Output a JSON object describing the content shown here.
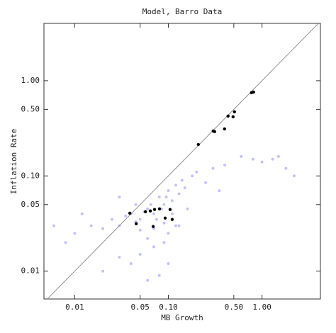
{
  "chart_data": {
    "type": "scatter",
    "title": "Model, Barro Data",
    "x_label": "MB Growth",
    "y_label": "Inflation Rate",
    "xscale": "log",
    "yscale": "log",
    "identity_line": true,
    "xlim": [
      0.0047,
      4.2
    ],
    "ylim": [
      0.0051,
      4.0
    ],
    "xticks": [
      0.01,
      0.05,
      {
        "value": 0.1,
        "label": "0.10"
      },
      {
        "value": 0.5,
        "label": "0.50"
      },
      {
        "value": 1,
        "label": "1.00"
      }
    ],
    "yticks": [
      0.01,
      0.05,
      {
        "value": 0.1,
        "label": "0.10"
      },
      {
        "value": 0.5,
        "label": "0.50"
      },
      {
        "value": 1,
        "label": "1.00"
      }
    ],
    "series": [
      {
        "color": "#7b7bf5",
        "opacity": 0.45,
        "x": [
          0.08,
          0.1,
          0.12,
          0.06,
          0.09,
          0.07,
          0.11,
          0.13,
          0.15,
          0.05,
          0.04,
          0.03,
          0.02,
          0.015,
          0.01,
          0.008,
          0.025,
          0.035,
          0.045,
          0.055,
          0.065,
          0.075,
          0.085,
          0.095,
          0.14,
          0.18,
          0.2,
          0.25,
          0.3,
          0.12,
          0.1,
          0.09,
          0.07,
          0.06,
          0.05,
          0.04,
          0.03,
          0.02,
          0.06,
          0.08,
          0.1,
          0.05,
          0.07,
          0.03,
          0.012,
          0.006,
          0.6,
          0.8,
          1.0,
          1.3,
          1.8,
          2.2,
          0.4,
          0.35,
          1.5,
          0.16,
          0.11,
          0.045,
          0.09,
          0.13
        ],
        "values": [
          0.06,
          0.07,
          0.08,
          0.045,
          0.05,
          0.04,
          0.055,
          0.065,
          0.075,
          0.035,
          0.04,
          0.03,
          0.028,
          0.03,
          0.025,
          0.02,
          0.035,
          0.038,
          0.033,
          0.042,
          0.05,
          0.035,
          0.045,
          0.06,
          0.09,
          0.1,
          0.11,
          0.085,
          0.12,
          0.03,
          0.025,
          0.02,
          0.018,
          0.022,
          0.015,
          0.012,
          0.014,
          0.01,
          0.008,
          0.009,
          0.012,
          0.027,
          0.028,
          0.06,
          0.04,
          0.03,
          0.16,
          0.15,
          0.14,
          0.15,
          0.12,
          0.1,
          0.13,
          0.07,
          0.16,
          0.045,
          0.04,
          0.05,
          0.032,
          0.03
        ]
      },
      {
        "color": "#000000",
        "opacity": 1,
        "x": [
          0.0388,
          0.0454,
          0.0569,
          0.0642,
          0.0713,
          0.0805,
          0.0689,
          0.0925,
          0.1044,
          0.11,
          0.209,
          0.301,
          0.312,
          0.398,
          0.434,
          0.491,
          0.508,
          0.771,
          0.812
        ],
        "values": [
          0.0407,
          0.0315,
          0.0421,
          0.0429,
          0.0444,
          0.0451,
          0.0294,
          0.0361,
          0.0444,
          0.0349,
          0.214,
          0.296,
          0.292,
          0.312,
          0.425,
          0.418,
          0.471,
          0.748,
          0.76
        ]
      }
    ]
  }
}
